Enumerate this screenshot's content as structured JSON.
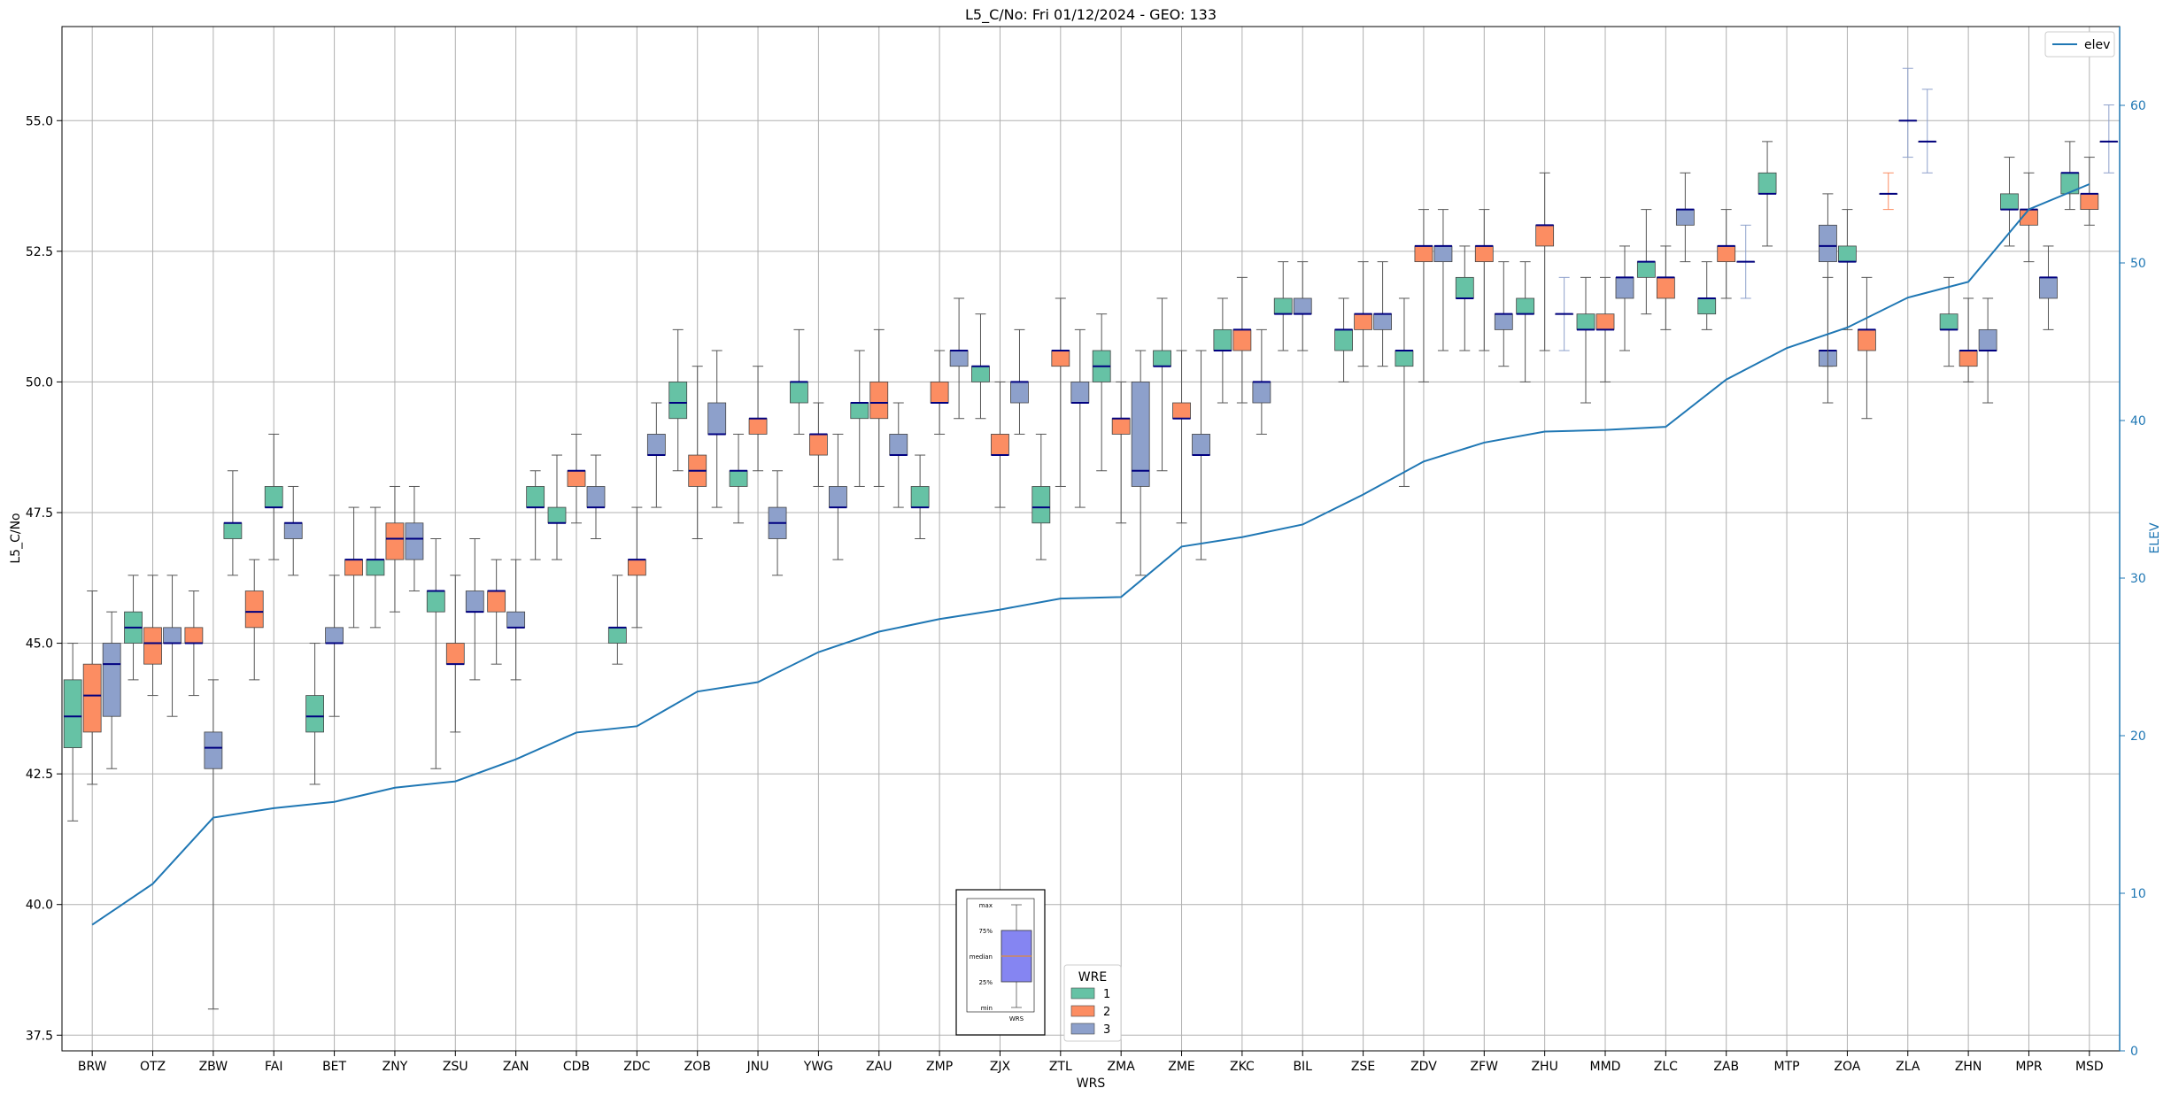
{
  "chart_data": {
    "type": "box",
    "title": "L5_C/No: Fri 01/12/2024 - GEO: 133",
    "xlabel": "WRS",
    "ylabel": "L5_C/No",
    "y2label": "ELEV",
    "ylim": [
      37.2,
      56.8
    ],
    "y2lim": [
      0,
      65
    ],
    "yticks": [
      "37.5",
      "40.0",
      "42.5",
      "45.0",
      "47.5",
      "50.0",
      "52.5",
      "55.0"
    ],
    "y2ticks": [
      "0",
      "10",
      "20",
      "30",
      "40",
      "50",
      "60"
    ],
    "grid": true,
    "categories": [
      "BRW",
      "OTZ",
      "ZBW",
      "FAI",
      "BET",
      "ZNY",
      "ZSU",
      "ZAN",
      "CDB",
      "ZDC",
      "ZOB",
      "JNU",
      "YWG",
      "ZAU",
      "ZMP",
      "ZJX",
      "ZTL",
      "ZMA",
      "ZME",
      "ZKC",
      "BIL",
      "ZSE",
      "ZDV",
      "ZFW",
      "ZHU",
      "MMD",
      "ZLC",
      "ZAB",
      "MTP",
      "ZOA",
      "ZLA",
      "ZHN",
      "MPR",
      "MSD"
    ],
    "wre_colors": {
      "1": "#66c2a5",
      "2": "#fc8d62",
      "3": "#8da0cb"
    },
    "line_color": "#1f77b4",
    "median_color": "#000080",
    "boxes": {
      "BRW": [
        [
          1,
          41.6,
          43.0,
          43.6,
          44.3,
          45.0
        ],
        [
          2,
          42.3,
          43.3,
          44.0,
          44.6,
          46.0
        ],
        [
          3,
          42.6,
          43.6,
          44.6,
          45.0,
          45.6
        ]
      ],
      "OTZ": [
        [
          1,
          44.3,
          45.0,
          45.3,
          45.6,
          46.3
        ],
        [
          2,
          44.0,
          44.6,
          45.0,
          45.3,
          46.3
        ],
        [
          3,
          43.6,
          45.0,
          45.0,
          45.3,
          46.3
        ]
      ],
      "ZBW": [
        [
          2,
          44.0,
          45.0,
          45.0,
          45.3,
          46.0
        ],
        [
          3,
          38.0,
          42.6,
          43.0,
          43.3,
          44.3
        ],
        [
          1,
          46.3,
          47.0,
          47.3,
          47.3,
          48.3
        ]
      ],
      "FAI": [
        [
          2,
          44.3,
          45.3,
          45.6,
          46.0,
          46.6
        ],
        [
          1,
          46.6,
          47.6,
          47.6,
          48.0,
          49.0
        ],
        [
          3,
          46.3,
          47.0,
          47.3,
          47.3,
          48.0
        ]
      ],
      "BET": [
        [
          1,
          42.3,
          43.3,
          43.6,
          44.0,
          45.0
        ],
        [
          3,
          43.6,
          45.0,
          45.0,
          45.3,
          46.3
        ],
        [
          2,
          45.3,
          46.3,
          46.6,
          46.6,
          47.6
        ]
      ],
      "ZNY": [
        [
          1,
          45.3,
          46.3,
          46.6,
          46.6,
          47.6
        ],
        [
          2,
          45.6,
          46.6,
          47.0,
          47.3,
          48.0
        ],
        [
          3,
          46.0,
          46.6,
          47.0,
          47.3,
          48.0
        ]
      ],
      "ZSU": [
        [
          1,
          42.6,
          45.6,
          46.0,
          46.0,
          47.0
        ],
        [
          2,
          43.3,
          44.6,
          44.6,
          45.0,
          46.3
        ],
        [
          3,
          44.3,
          45.6,
          45.6,
          46.0,
          47.0
        ]
      ],
      "ZAN": [
        [
          2,
          44.6,
          45.6,
          46.0,
          46.0,
          46.6
        ],
        [
          3,
          44.3,
          45.3,
          45.3,
          45.6,
          46.6
        ],
        [
          1,
          46.6,
          47.6,
          47.6,
          48.0,
          48.3
        ]
      ],
      "CDB": [
        [
          1,
          46.6,
          47.3,
          47.3,
          47.6,
          48.6
        ],
        [
          2,
          47.3,
          48.0,
          48.3,
          48.3,
          49.0
        ],
        [
          3,
          47.0,
          47.6,
          47.6,
          48.0,
          48.6
        ]
      ],
      "ZDC": [
        [
          1,
          44.6,
          45.0,
          45.3,
          45.3,
          46.3
        ],
        [
          2,
          45.3,
          46.3,
          46.6,
          46.6,
          47.6
        ],
        [
          3,
          47.6,
          48.6,
          48.6,
          49.0,
          49.6
        ]
      ],
      "ZOB": [
        [
          1,
          48.3,
          49.3,
          49.6,
          50.0,
          51.0
        ],
        [
          2,
          47.0,
          48.0,
          48.3,
          48.6,
          50.3
        ],
        [
          3,
          47.6,
          49.0,
          49.0,
          49.6,
          50.6
        ]
      ],
      "JNU": [
        [
          1,
          47.3,
          48.0,
          48.3,
          48.3,
          49.0
        ],
        [
          2,
          48.3,
          49.0,
          49.3,
          49.3,
          50.3
        ],
        [
          3,
          46.3,
          47.0,
          47.3,
          47.6,
          48.3
        ]
      ],
      "YWG": [
        [
          1,
          49.0,
          49.6,
          50.0,
          50.0,
          51.0
        ],
        [
          2,
          48.0,
          48.6,
          49.0,
          49.0,
          49.6
        ],
        [
          3,
          46.6,
          47.6,
          47.6,
          48.0,
          49.0
        ]
      ],
      "ZAU": [
        [
          1,
          48.0,
          49.3,
          49.6,
          49.6,
          50.6
        ],
        [
          2,
          48.0,
          49.3,
          49.6,
          50.0,
          51.0
        ],
        [
          3,
          47.6,
          48.6,
          48.6,
          49.0,
          49.6
        ]
      ],
      "ZMP": [
        [
          1,
          47.0,
          47.6,
          47.6,
          48.0,
          48.6
        ],
        [
          2,
          49.0,
          49.6,
          49.6,
          50.0,
          50.6
        ],
        [
          3,
          49.3,
          50.3,
          50.6,
          50.6,
          51.6
        ]
      ],
      "ZJX": [
        [
          1,
          49.3,
          50.0,
          50.3,
          50.3,
          51.3
        ],
        [
          2,
          47.6,
          48.6,
          48.6,
          49.0,
          50.0
        ],
        [
          3,
          49.0,
          49.6,
          50.0,
          50.0,
          51.0
        ]
      ],
      "ZTL": [
        [
          1,
          46.6,
          47.3,
          47.6,
          48.0,
          49.0
        ],
        [
          2,
          48.0,
          50.3,
          50.6,
          50.6,
          51.6
        ],
        [
          3,
          47.6,
          49.6,
          49.6,
          50.0,
          51.0
        ]
      ],
      "ZMA": [
        [
          1,
          48.3,
          50.0,
          50.3,
          50.6,
          51.3
        ],
        [
          2,
          47.3,
          49.0,
          49.3,
          49.3,
          50.0
        ],
        [
          3,
          46.3,
          48.0,
          48.3,
          50.0,
          50.6
        ]
      ],
      "ZME": [
        [
          1,
          48.3,
          50.3,
          50.3,
          50.6,
          51.6
        ],
        [
          2,
          47.3,
          49.3,
          49.3,
          49.6,
          50.6
        ],
        [
          3,
          46.6,
          48.6,
          48.6,
          49.0,
          50.6
        ]
      ],
      "ZKC": [
        [
          1,
          49.6,
          50.6,
          50.6,
          51.0,
          51.6
        ],
        [
          2,
          49.6,
          50.6,
          51.0,
          51.0,
          52.0
        ],
        [
          3,
          49.0,
          49.6,
          50.0,
          50.0,
          51.0
        ]
      ],
      "BIL": [
        [
          1,
          50.6,
          51.3,
          51.3,
          51.6,
          52.3
        ],
        [
          3,
          50.6,
          51.3,
          51.3,
          51.6,
          52.3
        ]
      ],
      "ZSE": [
        [
          1,
          50.0,
          50.6,
          51.0,
          51.0,
          51.6
        ],
        [
          2,
          50.3,
          51.0,
          51.3,
          51.3,
          52.3
        ],
        [
          3,
          50.3,
          51.0,
          51.3,
          51.3,
          52.3
        ]
      ],
      "ZDV": [
        [
          1,
          48.0,
          50.3,
          50.6,
          50.6,
          51.6
        ],
        [
          2,
          50.0,
          52.3,
          52.6,
          52.6,
          53.3
        ],
        [
          3,
          50.6,
          52.3,
          52.6,
          52.6,
          53.3
        ]
      ],
      "ZFW": [
        [
          1,
          50.6,
          51.6,
          51.6,
          52.0,
          52.6
        ],
        [
          2,
          50.6,
          52.3,
          52.6,
          52.6,
          53.3
        ],
        [
          3,
          50.3,
          51.0,
          51.3,
          51.3,
          52.3
        ]
      ],
      "ZHU": [
        [
          1,
          50.0,
          51.3,
          51.3,
          51.6,
          52.3
        ],
        [
          2,
          50.6,
          52.6,
          53.0,
          53.0,
          54.0
        ],
        [
          3,
          50.6,
          51.3,
          51.3,
          51.3,
          52.0
        ]
      ],
      "MMD": [
        [
          1,
          49.6,
          51.0,
          51.0,
          51.3,
          52.0
        ],
        [
          2,
          50.0,
          51.0,
          51.0,
          51.3,
          52.0
        ],
        [
          3,
          50.6,
          51.6,
          52.0,
          52.0,
          52.6
        ]
      ],
      "ZLC": [
        [
          1,
          51.3,
          52.0,
          52.3,
          52.3,
          53.3
        ],
        [
          2,
          51.0,
          51.6,
          52.0,
          52.0,
          52.6
        ],
        [
          3,
          52.3,
          53.0,
          53.3,
          53.3,
          54.0
        ]
      ],
      "ZAB": [
        [
          1,
          51.0,
          51.3,
          51.6,
          51.6,
          52.3
        ],
        [
          2,
          51.6,
          52.3,
          52.6,
          52.6,
          53.3
        ],
        [
          3,
          51.6,
          52.3,
          52.3,
          52.3,
          53.0
        ]
      ],
      "MTP": [
        [
          1,
          52.6,
          53.6,
          53.6,
          54.0,
          54.6
        ]
      ],
      "ZOA": [
        [
          3,
          49.6,
          50.3,
          50.6,
          50.6,
          52.0
        ],
        [
          1,
          51.0,
          52.3,
          52.3,
          52.6,
          53.3
        ],
        [
          2,
          49.3,
          50.6,
          51.0,
          51.0,
          52.0
        ],
        [
          3,
          50.3,
          52.3,
          52.6,
          53.0,
          53.6
        ]
      ],
      "ZLA": [
        [
          2,
          53.3,
          53.6,
          53.6,
          53.6,
          54.0
        ],
        [
          3,
          54.3,
          55.0,
          55.0,
          55.0,
          56.0
        ],
        [
          3,
          54.0,
          54.6,
          54.6,
          54.6,
          55.6
        ]
      ],
      "ZHN": [
        [
          1,
          50.3,
          51.0,
          51.0,
          51.3,
          52.0
        ],
        [
          2,
          50.0,
          50.3,
          50.6,
          50.6,
          51.6
        ],
        [
          3,
          49.6,
          50.6,
          50.6,
          51.0,
          51.6
        ]
      ],
      "MPR": [
        [
          1,
          52.6,
          53.3,
          53.3,
          53.6,
          54.3
        ],
        [
          2,
          52.3,
          53.0,
          53.3,
          53.3,
          54.0
        ],
        [
          3,
          51.0,
          51.6,
          52.0,
          52.0,
          52.6
        ]
      ],
      "MSD": [
        [
          1,
          53.3,
          53.6,
          54.0,
          54.0,
          54.6
        ],
        [
          2,
          53.0,
          53.3,
          53.6,
          53.6,
          54.3
        ],
        [
          3,
          54.0,
          54.6,
          54.6,
          54.6,
          55.3
        ]
      ]
    },
    "series": [
      {
        "name": "elev",
        "axis": "right",
        "values": [
          8.0,
          10.6,
          14.8,
          15.4,
          15.8,
          16.7,
          17.1,
          18.5,
          20.2,
          20.6,
          22.8,
          23.4,
          25.3,
          26.6,
          27.4,
          28.0,
          28.7,
          28.8,
          32.0,
          32.6,
          33.4,
          35.3,
          37.4,
          38.6,
          39.3,
          39.4,
          39.6,
          42.6,
          44.6,
          45.9,
          47.8,
          48.8,
          53.4,
          55.0
        ]
      }
    ],
    "legend_top_right": "elev",
    "legend_wre": {
      "title": "WRE",
      "items": [
        "1",
        "2",
        "3"
      ]
    },
    "key_labels": [
      "max",
      "75%",
      "median",
      "25%",
      "min",
      "WRS"
    ]
  }
}
